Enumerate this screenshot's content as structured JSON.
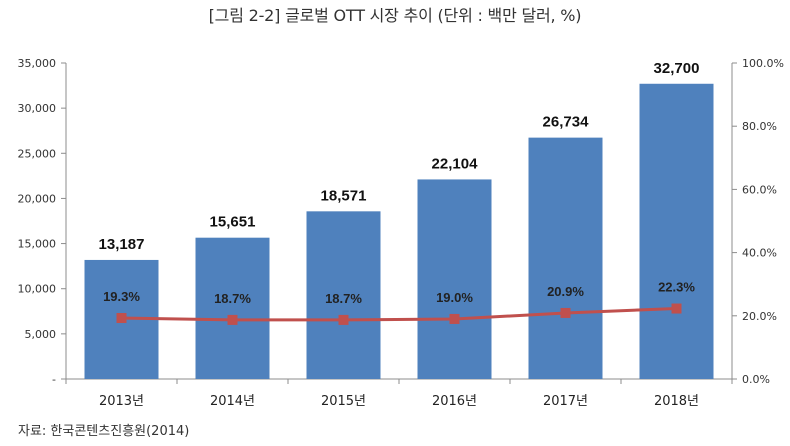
{
  "title": "[그림 2-2] 글로벌 OTT 시장 추이 (단위 : 백만 달러, %)",
  "source": "자료: 한국콘텐츠진흥원(2014)",
  "colors": {
    "bar": "#4f81bd",
    "line": "#c0504d",
    "marker": "#c0504d"
  },
  "chart_data": {
    "type": "bar",
    "categories": [
      "2013년",
      "2014년",
      "2015년",
      "2016년",
      "2017년",
      "2018년"
    ],
    "series": [
      {
        "type": "bar",
        "axis": "left",
        "values": [
          13187,
          15651,
          18571,
          22104,
          26734,
          32700
        ],
        "labels": [
          "13,187",
          "15,651",
          "18,571",
          "22,104",
          "26,734",
          "32,700"
        ]
      },
      {
        "type": "line",
        "axis": "right",
        "values": [
          19.3,
          18.7,
          18.7,
          19.0,
          20.9,
          22.3
        ],
        "labels": [
          "19.3%",
          "18.7%",
          "18.7%",
          "19.0%",
          "20.9%",
          "22.3%"
        ]
      }
    ],
    "y_left": {
      "min": 0,
      "max": 35000,
      "ticks": [
        "-",
        "5,000",
        "10,000",
        "15,000",
        "20,000",
        "25,000",
        "30,000",
        "35,000"
      ]
    },
    "y_right": {
      "min": 0,
      "max": 100,
      "ticks": [
        "0.0%",
        "20.0%",
        "40.0%",
        "60.0%",
        "80.0%",
        "100.0%"
      ]
    },
    "grid": false,
    "legend": "none"
  }
}
